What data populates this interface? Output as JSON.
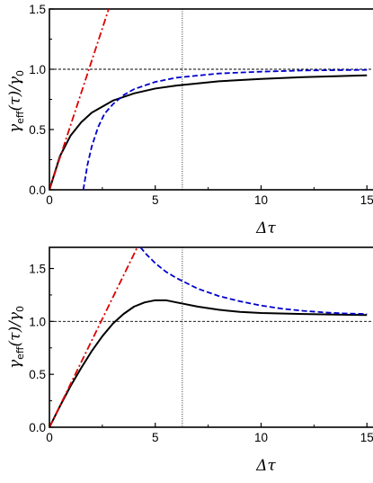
{
  "chart_data": [
    {
      "type": "line",
      "xlabel": "Δτ",
      "ylabel": "γeff(τ)/γ0",
      "xlim": [
        0,
        15.5
      ],
      "ylim": [
        0,
        1.5
      ],
      "x_ticks": [
        "0",
        "5",
        "10",
        "15"
      ],
      "x_tick_values": [
        0,
        5,
        10,
        15
      ],
      "y_ticks": [
        "0.0",
        "0.5",
        "1.0",
        "1.5"
      ],
      "y_tick_values": [
        0,
        0.5,
        1.0,
        1.5
      ],
      "reference_lines": [
        {
          "orientation": "horizontal",
          "value": 1.0,
          "style": "dashed",
          "color": "#000000"
        },
        {
          "orientation": "vertical",
          "value": 6.28,
          "style": "dotted",
          "color": "#000000"
        }
      ],
      "series": [
        {
          "color": "#000000",
          "style": "solid",
          "x": [
            0,
            0.5,
            1,
            1.5,
            2,
            3,
            4,
            5,
            6,
            8,
            10,
            12,
            15
          ],
          "y": [
            0,
            0.28,
            0.45,
            0.56,
            0.64,
            0.74,
            0.8,
            0.84,
            0.865,
            0.9,
            0.92,
            0.935,
            0.95
          ]
        },
        {
          "color": "#0000cc",
          "style": "dashed",
          "x": [
            1.6,
            1.8,
            2.0,
            2.3,
            2.6,
            3.0,
            3.5,
            4,
            5,
            6,
            8,
            10,
            12,
            15
          ],
          "y": [
            0,
            0.21,
            0.36,
            0.52,
            0.63,
            0.71,
            0.785,
            0.835,
            0.895,
            0.93,
            0.965,
            0.98,
            0.99,
            0.995
          ]
        },
        {
          "color": "#dd0000",
          "style": "dashdot",
          "x": [
            0,
            2.8
          ],
          "y": [
            0,
            1.5
          ]
        }
      ]
    },
    {
      "type": "line",
      "xlabel": "Δτ",
      "ylabel": "γeff(τ)/γ0",
      "xlim": [
        0,
        15.5
      ],
      "ylim": [
        0,
        1.7
      ],
      "x_ticks": [
        "0",
        "5",
        "10",
        "15"
      ],
      "x_tick_values": [
        0,
        5,
        10,
        15
      ],
      "y_ticks": [
        "0.0",
        "0.5",
        "1.0",
        "1.5"
      ],
      "y_tick_values": [
        0,
        0.5,
        1.0,
        1.5
      ],
      "reference_lines": [
        {
          "orientation": "horizontal",
          "value": 1.0,
          "style": "dashed",
          "color": "#000000"
        },
        {
          "orientation": "vertical",
          "value": 6.28,
          "style": "dotted",
          "color": "#000000"
        }
      ],
      "series": [
        {
          "color": "#000000",
          "style": "solid",
          "x": [
            0,
            0.5,
            1,
            1.5,
            2,
            2.5,
            3,
            3.5,
            4,
            4.5,
            5,
            5.5,
            6,
            7,
            8,
            9,
            10,
            12,
            15
          ],
          "y": [
            0,
            0.2,
            0.39,
            0.56,
            0.72,
            0.86,
            0.98,
            1.07,
            1.14,
            1.18,
            1.2,
            1.2,
            1.18,
            1.14,
            1.11,
            1.09,
            1.08,
            1.07,
            1.06
          ]
        },
        {
          "color": "#0000cc",
          "style": "dashed",
          "x": [
            4.3,
            4.6,
            5,
            5.5,
            6,
            6.5,
            7,
            8,
            9,
            10,
            11,
            12,
            13,
            14,
            15
          ],
          "y": [
            1.7,
            1.63,
            1.55,
            1.47,
            1.41,
            1.36,
            1.31,
            1.24,
            1.19,
            1.15,
            1.12,
            1.1,
            1.085,
            1.075,
            1.07
          ]
        },
        {
          "color": "#dd0000",
          "style": "dashdot",
          "x": [
            0,
            4.15
          ],
          "y": [
            0,
            1.7
          ]
        }
      ]
    }
  ]
}
